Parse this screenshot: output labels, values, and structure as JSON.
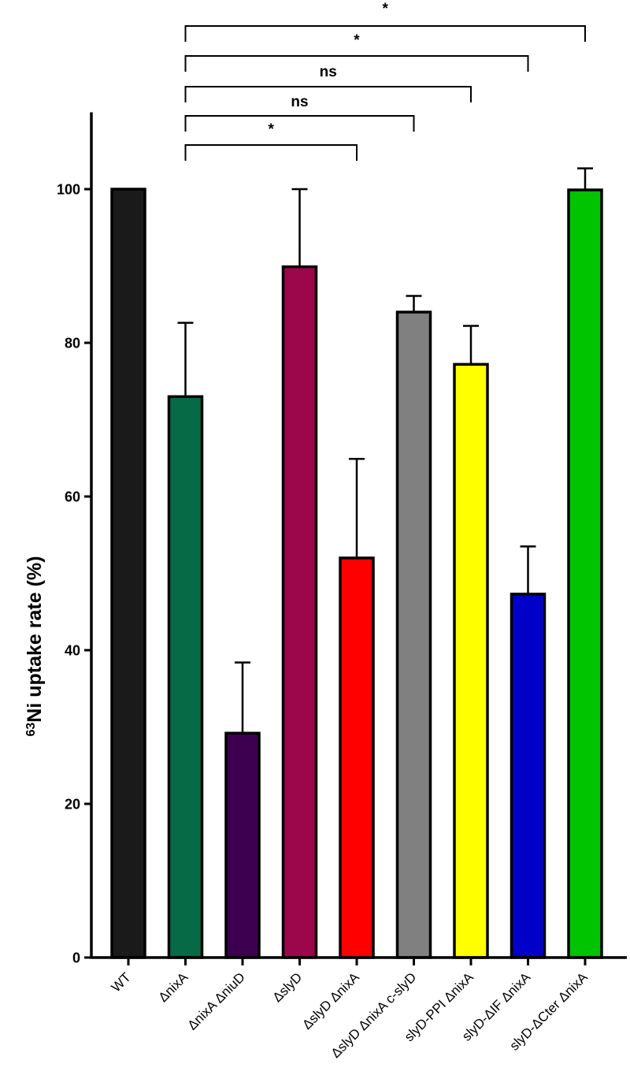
{
  "chart_data": {
    "type": "bar",
    "ylabel_sup": "63",
    "ylabel_main": "Ni uptake rate (%)",
    "xlabel": "",
    "ylim": [
      0,
      110
    ],
    "yticks": [
      0,
      20,
      40,
      60,
      80,
      100
    ],
    "grid": false,
    "categories": [
      "WT",
      "ΔnixA",
      "ΔnixA ΔniuD",
      "ΔslyD",
      "ΔslyD ΔnixA",
      "ΔslyD ΔnixA c-slyD",
      "slyD-PPI ΔnixA",
      "slyD-ΔIF ΔnixA",
      "slyD-ΔCter ΔnixA"
    ],
    "values": [
      100,
      73,
      29.2,
      89.9,
      52,
      84,
      77.2,
      47.3,
      99.9
    ],
    "errors": [
      0,
      9.6,
      9.2,
      10.1,
      12.9,
      2.1,
      5,
      6.2,
      2.8
    ],
    "colors": [
      "#1a1a1a",
      "#056a45",
      "#3d0050",
      "#9c064a",
      "#ff0000",
      "#808080",
      "#ffff00",
      "#0000c8",
      "#00c400"
    ],
    "significance": [
      {
        "from": 1,
        "to": 4,
        "label": "*"
      },
      {
        "from": 1,
        "to": 5,
        "label": "ns"
      },
      {
        "from": 1,
        "to": 6,
        "label": "ns"
      },
      {
        "from": 1,
        "to": 7,
        "label": "*"
      },
      {
        "from": 1,
        "to": 8,
        "label": "*"
      }
    ]
  }
}
